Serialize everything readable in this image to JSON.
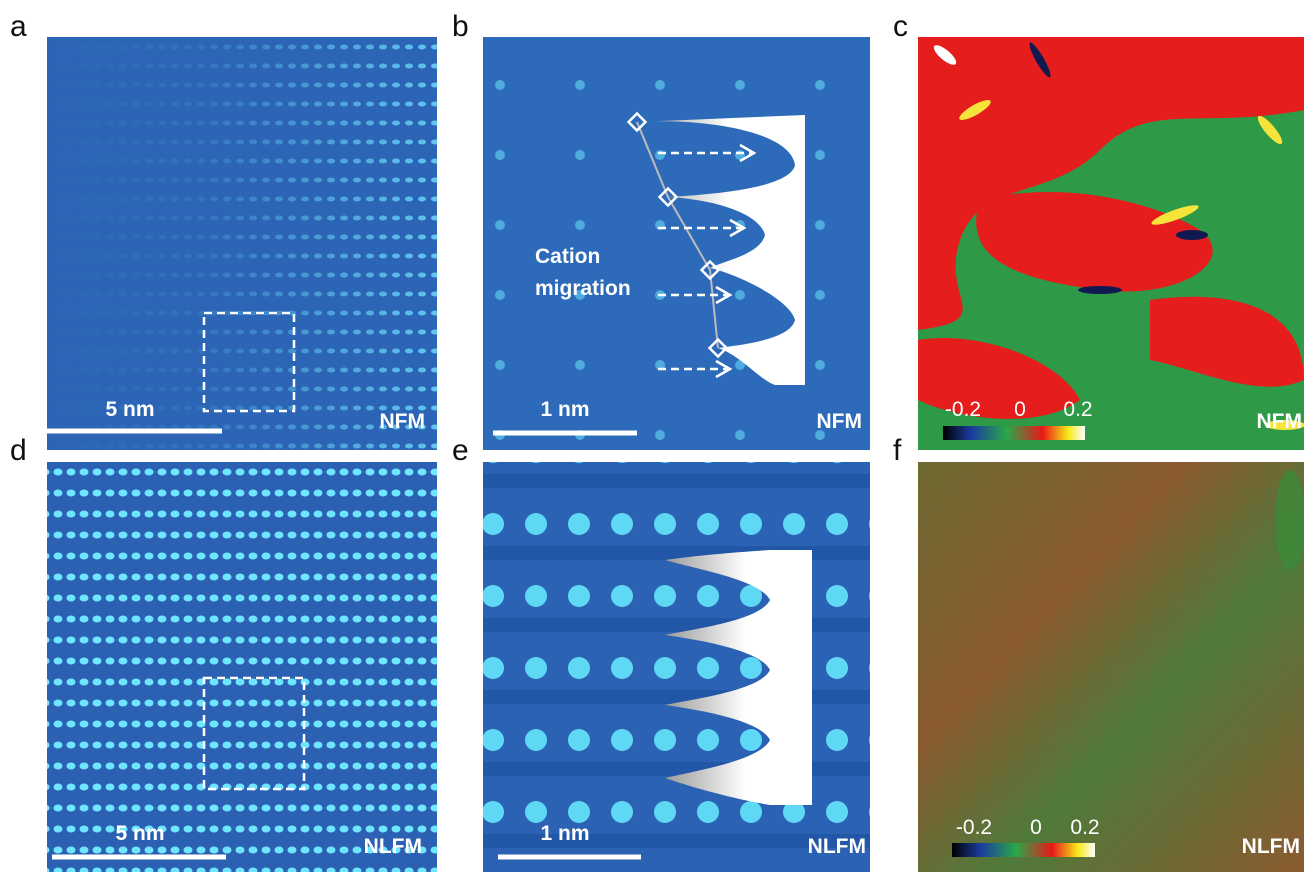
{
  "panels": [
    {
      "letter": "a",
      "scale_bar": "5 nm",
      "label": "NFM"
    },
    {
      "letter": "b",
      "scale_bar": "1 nm",
      "label": "NFM",
      "annotation": [
        "Cation",
        "migration"
      ]
    },
    {
      "letter": "c",
      "label": "NFM",
      "colorbar": [
        "-0.2",
        "0",
        "0.2"
      ]
    },
    {
      "letter": "d",
      "scale_bar": "5 nm",
      "label": "NLFM"
    },
    {
      "letter": "e",
      "scale_bar": "1 nm",
      "label": "NLFM"
    },
    {
      "letter": "f",
      "label": "NLFM",
      "colorbar": [
        "-0.2",
        "0",
        "0.2"
      ]
    }
  ]
}
